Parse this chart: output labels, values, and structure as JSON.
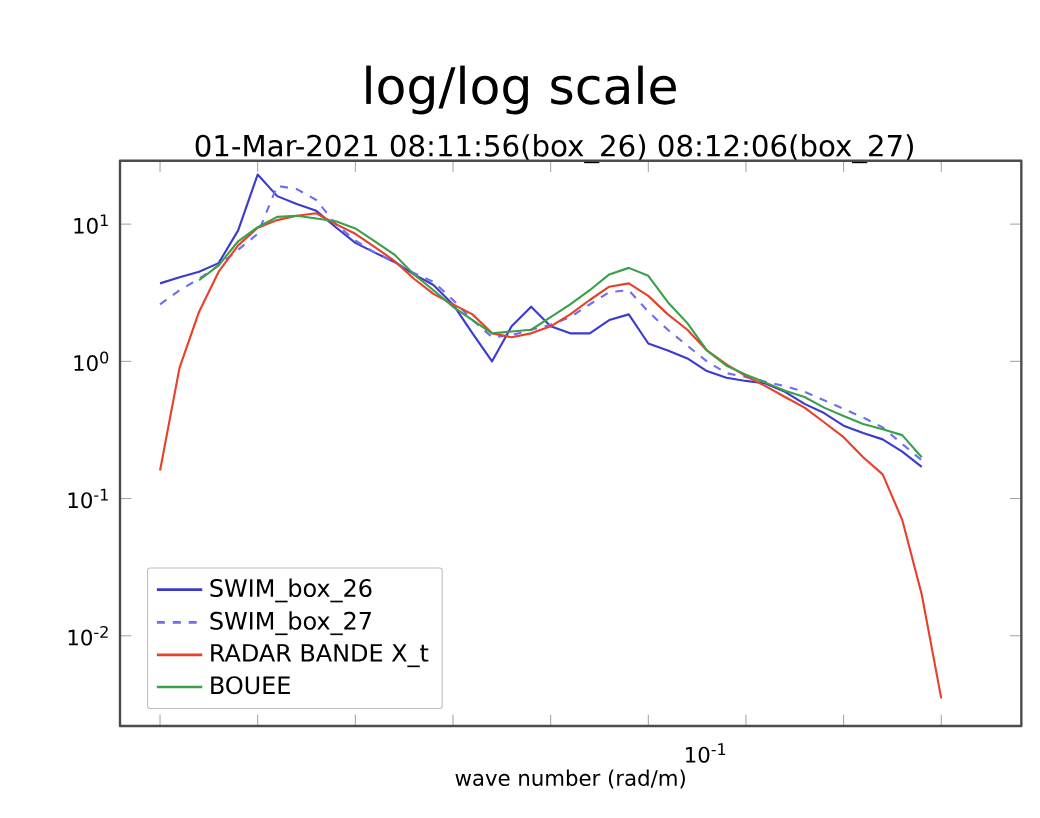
{
  "chart_data": {
    "type": "line",
    "title": "log/log scale",
    "subtitle": "01-Mar-2021 08:11:56(box_26) 08:12:06(box_27)",
    "xlabel": "wave number (rad/m)",
    "annotations": [
      "10$^{-1}$"
    ],
    "log": "y",
    "grid": false,
    "legend": "bottom left",
    "marker": "none",
    "categories": [
      null,
      null,
      null,
      null,
      null,
      null,
      null,
      null,
      null,
      null,
      null,
      null,
      null,
      null,
      null,
      null,
      null,
      null,
      null,
      null,
      null,
      null,
      null,
      null,
      null,
      null,
      null,
      null,
      null,
      null,
      null,
      null,
      null,
      null,
      null,
      null,
      null,
      null,
      null,
      null,
      null
    ],
    "ylim": [
      0.0022,
      29
    ],
    "yticks": [
      {
        "value": 0.01,
        "label": "10$^{-2}$"
      },
      {
        "value": 0.1,
        "label": "10$^{-1}$"
      },
      {
        "value": 1,
        "label": "10$^{0}$"
      },
      {
        "value": 10,
        "label": "10$^{1}$"
      }
    ],
    "series": [
      {
        "name": "SWIM_box_26",
        "color": "#3b3bd0",
        "line_style": "solid",
        "values": [
          3.7,
          4.1,
          4.5,
          5.2,
          9,
          23,
          16,
          14,
          12.5,
          9.5,
          7.3,
          6.2,
          5.3,
          4.3,
          3.6,
          2.6,
          1.6,
          1.0,
          1.8,
          2.5,
          1.8,
          1.6,
          1.6,
          2.0,
          2.2,
          1.35,
          1.2,
          1.05,
          0.85,
          0.76,
          0.72,
          0.69,
          0.6,
          0.49,
          0.42,
          0.34,
          0.3,
          0.27,
          0.22,
          0.17,
          null
        ]
      },
      {
        "name": "SWIM_box_27",
        "color": "#6e6ef0",
        "line_style": "dashed",
        "values": [
          2.6,
          3.3,
          4.0,
          5.0,
          6.5,
          8.5,
          19,
          18,
          15,
          10,
          7.6,
          6.2,
          5.3,
          4.4,
          3.8,
          2.8,
          2.0,
          1.5,
          1.55,
          1.7,
          1.85,
          2.1,
          2.6,
          3.2,
          3.3,
          2.3,
          1.7,
          1.3,
          1.0,
          0.82,
          0.77,
          0.71,
          0.66,
          0.6,
          0.52,
          0.45,
          0.39,
          0.33,
          0.25,
          0.19,
          null
        ]
      },
      {
        "name": "RADAR BANDE X_t",
        "color": "#e8402a",
        "line_style": "solid",
        "values": [
          0.16,
          0.9,
          2.3,
          4.5,
          7,
          9.4,
          10.7,
          11.5,
          12,
          10,
          8.5,
          6.8,
          5.4,
          4.0,
          3.1,
          2.6,
          2.2,
          1.6,
          1.5,
          1.6,
          1.8,
          2.2,
          2.8,
          3.5,
          3.7,
          3.0,
          2.2,
          1.7,
          1.2,
          0.95,
          0.78,
          0.66,
          0.55,
          0.46,
          0.36,
          0.28,
          0.2,
          0.15,
          0.07,
          0.02,
          0.0035
        ]
      },
      {
        "name": "BOUEE",
        "color": "#3aa04a",
        "line_style": "solid",
        "values": [
          null,
          null,
          3.9,
          5.0,
          7.5,
          9.5,
          11.3,
          11.5,
          11,
          10.5,
          9.3,
          7.5,
          6.0,
          4.3,
          3.3,
          2.5,
          2.0,
          1.6,
          1.65,
          1.7,
          2.1,
          2.6,
          3.3,
          4.3,
          4.8,
          4.2,
          2.7,
          1.9,
          1.2,
          0.93,
          0.8,
          0.7,
          0.61,
          0.55,
          0.46,
          0.4,
          0.35,
          0.32,
          0.29,
          0.2,
          null
        ]
      }
    ]
  }
}
